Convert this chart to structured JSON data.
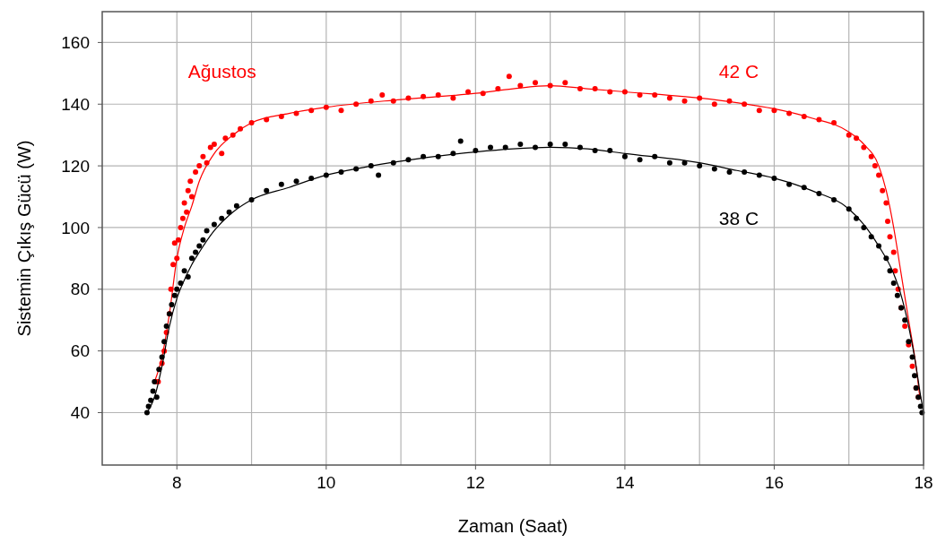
{
  "chart_data": {
    "type": "scatter",
    "xlabel": "Zaman (Saat)",
    "ylabel": "Sistemin Çıkış Gücü (W)",
    "xlim": [
      7,
      18
    ],
    "ylim": [
      23,
      170
    ],
    "xticks": [
      8,
      {
        "value": 9,
        "label": null
      },
      10,
      {
        "value": 11,
        "label": null
      },
      12,
      {
        "value": 13,
        "label": null
      },
      14,
      {
        "value": 15,
        "label": null
      },
      16,
      {
        "value": 17,
        "label": null
      },
      18
    ],
    "yticks": [
      40,
      60,
      80,
      100,
      120,
      140,
      160
    ],
    "grid": true,
    "marker": "circle",
    "annotations": [
      "Ağustos"
    ],
    "series": [
      {
        "name": "42 C",
        "color": "#ff0000",
        "x": [
          7.72,
          7.75,
          7.8,
          7.83,
          7.86,
          7.9,
          7.92,
          7.95,
          7.97,
          8.0,
          8.02,
          8.05,
          8.08,
          8.1,
          8.13,
          8.15,
          8.18,
          8.2,
          8.25,
          8.3,
          8.35,
          8.4,
          8.45,
          8.5,
          8.6,
          8.65,
          8.75,
          8.85,
          9.0,
          9.2,
          9.4,
          9.6,
          9.8,
          10.0,
          10.2,
          10.4,
          10.6,
          10.75,
          10.9,
          11.1,
          11.3,
          11.5,
          11.7,
          11.9,
          12.1,
          12.3,
          12.45,
          12.6,
          12.8,
          13.0,
          13.2,
          13.4,
          13.6,
          13.8,
          14.0,
          14.2,
          14.4,
          14.6,
          14.8,
          15.0,
          15.2,
          15.4,
          15.6,
          15.8,
          16.0,
          16.2,
          16.4,
          16.6,
          16.8,
          17.0,
          17.1,
          17.2,
          17.3,
          17.35,
          17.4,
          17.45,
          17.5,
          17.52,
          17.55,
          17.6,
          17.62,
          17.66,
          17.7,
          17.75,
          17.8,
          17.85,
          17.9,
          17.93
        ],
        "values": [
          50,
          50,
          56,
          60,
          66,
          72,
          80,
          88,
          95,
          90,
          96,
          100,
          103,
          108,
          105,
          112,
          115,
          110,
          118,
          120,
          123,
          121,
          126,
          127,
          124,
          129,
          130,
          132,
          134,
          135,
          136,
          137,
          138,
          139,
          138,
          140,
          141,
          143,
          141,
          142,
          142.5,
          143,
          142,
          144,
          143.5,
          145,
          149,
          146,
          147,
          146,
          147,
          145,
          145,
          144,
          144,
          143,
          143,
          142,
          141,
          142,
          140,
          141,
          140,
          138,
          138,
          137,
          136,
          135,
          134,
          130,
          129,
          126,
          123,
          120,
          117,
          112,
          108,
          102,
          97,
          92,
          86,
          80,
          74,
          68,
          62,
          55,
          48,
          45
        ]
      },
      {
        "type": "line",
        "color": "#ff0000",
        "marker": "none",
        "x": [
          7.7,
          7.8,
          7.9,
          8.0,
          8.1,
          8.2,
          8.3,
          8.5,
          8.75,
          9,
          9.5,
          10,
          11,
          12,
          12.5,
          13,
          13.5,
          14,
          15,
          15.5,
          16,
          16.5,
          17,
          17.2,
          17.4,
          17.5,
          17.6,
          17.7,
          17.8,
          17.9,
          17.95
        ],
        "values": [
          50,
          58,
          72,
          90,
          100,
          107,
          115,
          124,
          130,
          134,
          137,
          139,
          141.5,
          143.5,
          145,
          146,
          145,
          144,
          142,
          140.5,
          138.5,
          135.5,
          131,
          127,
          120,
          112,
          100,
          85,
          70,
          55,
          45
        ]
      },
      {
        "name": "38 C",
        "color": "#000000",
        "x": [
          7.6,
          7.62,
          7.65,
          7.68,
          7.7,
          7.73,
          7.76,
          7.8,
          7.83,
          7.86,
          7.9,
          7.93,
          7.97,
          8.0,
          8.05,
          8.1,
          8.15,
          8.2,
          8.25,
          8.3,
          8.35,
          8.4,
          8.5,
          8.6,
          8.7,
          8.8,
          9.0,
          9.2,
          9.4,
          9.6,
          9.8,
          10.0,
          10.2,
          10.4,
          10.6,
          10.7,
          10.9,
          11.1,
          11.3,
          11.5,
          11.7,
          11.8,
          12.0,
          12.2,
          12.4,
          12.6,
          12.8,
          13.0,
          13.2,
          13.4,
          13.6,
          13.8,
          14.0,
          14.2,
          14.4,
          14.6,
          14.8,
          15.0,
          15.2,
          15.4,
          15.6,
          15.8,
          16.0,
          16.2,
          16.4,
          16.6,
          16.8,
          17.0,
          17.1,
          17.2,
          17.3,
          17.4,
          17.5,
          17.55,
          17.6,
          17.65,
          17.7,
          17.75,
          17.8,
          17.85,
          17.88,
          17.9,
          17.93,
          17.96,
          17.98
        ],
        "values": [
          40,
          42,
          44,
          47,
          50,
          45,
          54,
          58,
          63,
          68,
          72,
          75,
          78,
          80,
          82,
          86,
          84,
          90,
          92,
          94,
          96,
          99,
          101,
          103,
          105,
          107,
          109,
          112,
          114,
          115,
          116,
          117,
          118,
          119,
          120,
          117,
          121,
          122,
          123,
          123,
          124,
          128,
          125,
          126,
          126,
          127,
          126,
          127,
          127,
          126,
          125,
          125,
          123,
          122,
          123,
          121,
          121,
          120,
          119,
          118,
          118,
          117,
          116,
          114,
          113,
          111,
          109,
          106,
          103,
          100,
          97,
          94,
          90,
          86,
          82,
          78,
          74,
          70,
          63,
          58,
          52,
          48,
          45,
          42,
          40
        ]
      },
      {
        "type": "line",
        "color": "#000000",
        "marker": "none",
        "x": [
          7.6,
          7.7,
          7.8,
          7.9,
          8.0,
          8.1,
          8.2,
          8.3,
          8.5,
          8.75,
          9,
          9.5,
          10,
          10.5,
          11,
          12,
          12.5,
          13,
          13.5,
          14,
          15,
          15.5,
          16,
          16.5,
          17,
          17.2,
          17.4,
          17.6,
          17.7,
          17.8,
          17.9,
          17.95,
          18
        ],
        "values": [
          40,
          45,
          55,
          68,
          77,
          83,
          88,
          92,
          99,
          105,
          109,
          113,
          117,
          119.5,
          121.5,
          124.5,
          125.5,
          126,
          125.5,
          124,
          121,
          118.5,
          116,
          112,
          106,
          101,
          94,
          85,
          78,
          68,
          55,
          47,
          40
        ]
      }
    ]
  }
}
